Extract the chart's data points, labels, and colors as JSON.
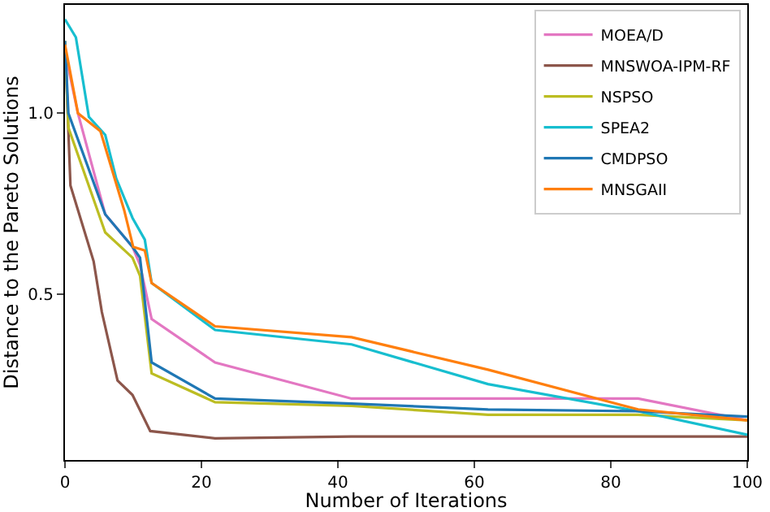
{
  "chart_data": {
    "type": "line",
    "xlabel": "Number of Iterations",
    "ylabel": "Distance to the Pareto Solutions",
    "xlim": [
      0,
      100
    ],
    "ylim": [
      0.04,
      1.3
    ],
    "xticks": [
      0,
      20,
      40,
      60,
      80,
      100
    ],
    "yticks": [
      0.5,
      {
        "value": 1,
        "label": "1.0"
      }
    ],
    "grid": false,
    "legend": "top right",
    "marker": "none",
    "line_style": "solid",
    "series": [
      {
        "name": "MOEA/D",
        "color": "#e377c2",
        "x": [
          0,
          1.9,
          5.9,
          9.9,
          11,
          12.7,
          22,
          42,
          62,
          84,
          100
        ],
        "values": [
          1.17,
          1.0,
          0.72,
          0.63,
          0.58,
          0.43,
          0.31,
          0.21,
          0.21,
          0.21,
          0.15
        ]
      },
      {
        "name": "MNSWOA-IPM-RF",
        "color": "#8c564b",
        "x": [
          0,
          0.8,
          4.2,
          5.4,
          7.7,
          9.9,
          12.5,
          22,
          42,
          62,
          84,
          100
        ],
        "values": [
          1.2,
          0.8,
          0.59,
          0.45,
          0.26,
          0.22,
          0.12,
          0.1,
          0.105,
          0.105,
          0.105,
          0.105
        ]
      },
      {
        "name": "NSPSO",
        "color": "#bcbd22",
        "x": [
          0,
          0.5,
          5.9,
          9.9,
          11,
          12.7,
          22,
          42,
          62,
          84,
          100
        ],
        "values": [
          1.2,
          0.96,
          0.67,
          0.6,
          0.55,
          0.28,
          0.2,
          0.19,
          0.165,
          0.165,
          0.15
        ]
      },
      {
        "name": "SPEA2",
        "color": "#17becf",
        "x": [
          0,
          1.6,
          3.5,
          5.9,
          7.5,
          9.9,
          11.7,
          12.7,
          22,
          42,
          62,
          84,
          100
        ],
        "values": [
          1.26,
          1.21,
          0.99,
          0.94,
          0.82,
          0.71,
          0.65,
          0.53,
          0.4,
          0.36,
          0.25,
          0.175,
          0.11
        ]
      },
      {
        "name": "CMDPSO",
        "color": "#1f77b4",
        "x": [
          0,
          0.5,
          5.9,
          9.9,
          11,
          12.7,
          22,
          42,
          62,
          84,
          100
        ],
        "values": [
          1.2,
          1.0,
          0.72,
          0.63,
          0.6,
          0.31,
          0.21,
          0.196,
          0.18,
          0.175,
          0.16
        ]
      },
      {
        "name": "MNSGAII",
        "color": "#ff7f0e",
        "x": [
          0,
          1.9,
          5.2,
          8.7,
          10,
          11.7,
          12.7,
          22,
          42,
          62,
          84,
          100
        ],
        "values": [
          1.19,
          1.0,
          0.95,
          0.73,
          0.63,
          0.62,
          0.53,
          0.41,
          0.38,
          0.29,
          0.18,
          0.15
        ]
      }
    ]
  }
}
